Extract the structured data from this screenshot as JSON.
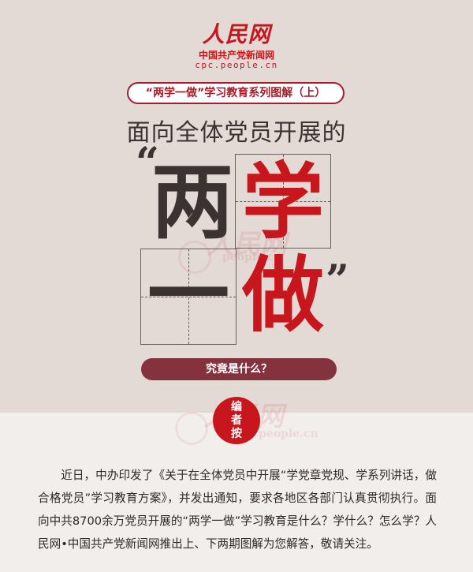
{
  "logo": {
    "name": "人民网",
    "subtitle": "中国共产党新闻网",
    "url": "cpc.people.cn"
  },
  "series_title": "“两学一做”学习教育系列图解（上）",
  "headline": "面向全体党员开展的",
  "big_chars": {
    "quote_open": "“",
    "char1": "两",
    "char2": "学",
    "char3": "一",
    "char4": "做",
    "quote_close": "”"
  },
  "question": "究竟是什么？",
  "editor_note": [
    "编",
    "者",
    "按"
  ],
  "watermark": {
    "name": "人民网",
    "url": "people.cn"
  },
  "body": "近日，中办印发了《关于在全体党员中开展“学党章党规、学系列讲话，做合格党员”学习教育方案》，并发出通知，要求各地区各部门认真贯彻执行。面向中共8700余万党员开展的“两学一做”学习教育是什么？学什么？怎么学？人民网•中国共产党新闻网推出上、下两期图解为您解答，敬请关注。",
  "colors": {
    "brand_red": "#c8161d",
    "dark_text": "#3a3332",
    "pill_maroon": "#84323d",
    "top_bg": "#e3d9d5"
  }
}
